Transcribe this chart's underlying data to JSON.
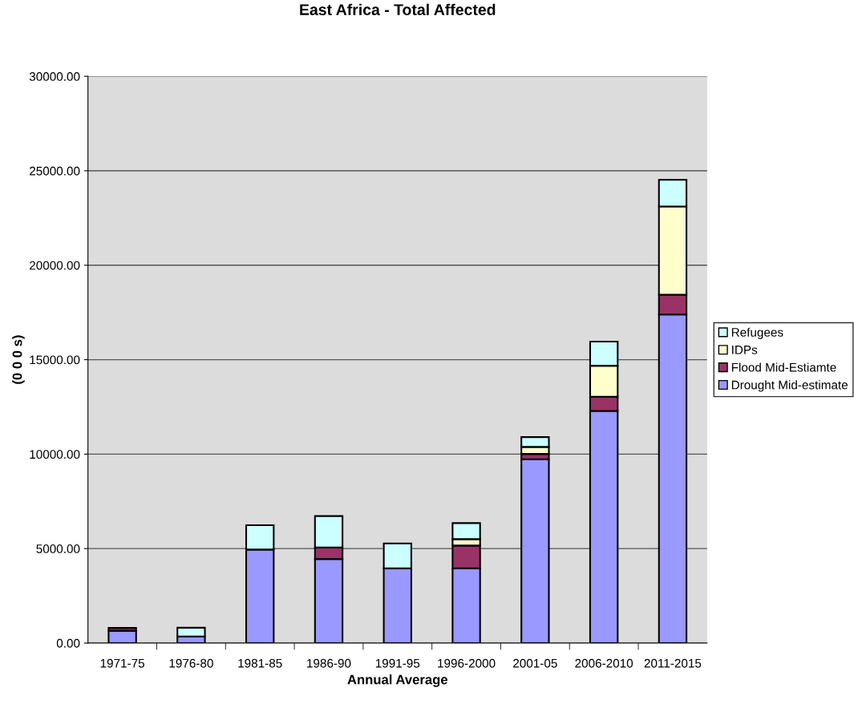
{
  "chart_data": {
    "type": "bar",
    "title": "East Africa - Total Affected",
    "xlabel": "Annual Average",
    "ylabel": "(0 0 0 s)",
    "stacked": true,
    "categories": [
      "1971-75",
      "1976-80",
      "1981-85",
      "1986-90",
      "1991-95",
      "1996-2000",
      "2001-05",
      "2006-2010",
      "2011-2015"
    ],
    "series": [
      {
        "name": "Drought Mid-estimate",
        "color": "#9999ff",
        "values": [
          650,
          350,
          4950,
          4450,
          3950,
          3960,
          9730,
          12290,
          17390
        ]
      },
      {
        "name": "Flood Mid-Estiamte",
        "color": "#993366",
        "values": [
          150,
          null,
          null,
          610,
          null,
          1200,
          280,
          750,
          1050
        ]
      },
      {
        "name": "IDPs",
        "color": "#ffffcc",
        "values": [
          null,
          null,
          null,
          null,
          null,
          340,
          370,
          1640,
          4670
        ]
      },
      {
        "name": "Refugees",
        "color": "#ccffff",
        "values": [
          null,
          460,
          1290,
          1660,
          1320,
          850,
          520,
          1280,
          1410
        ]
      }
    ],
    "ylim": [
      0,
      30000
    ],
    "yticks": [
      {
        "value": 0,
        "label": "0.00"
      },
      {
        "value": 5000,
        "label": "5000.00"
      },
      {
        "value": 10000,
        "label": "10000.00"
      },
      {
        "value": 15000,
        "label": "15000.00"
      },
      {
        "value": 20000,
        "label": "20000.00"
      },
      {
        "value": 25000,
        "label": "25000.00"
      },
      {
        "value": 30000,
        "label": "30000.00"
      }
    ],
    "grid": "y",
    "legend": "right"
  }
}
